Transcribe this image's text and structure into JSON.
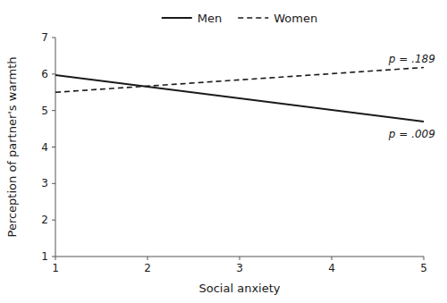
{
  "chart_data": {
    "type": "line",
    "x_label": "Social anxiety",
    "y_label": "Perception of partner's warmth",
    "x": [
      1,
      5
    ],
    "series": [
      {
        "name": "Men",
        "color": "#1a1a1a",
        "line_style": "solid",
        "values": [
          5.97,
          4.7
        ]
      },
      {
        "name": "Women",
        "color": "#1a1a1a",
        "line_style": "dashed",
        "values": [
          5.5,
          6.18
        ]
      }
    ],
    "annotations": [
      {
        "text": "p = .189",
        "x": 4.62,
        "y": 6.32
      },
      {
        "text": "p = .009",
        "x": 4.62,
        "y": 4.25
      }
    ],
    "xlim": [
      1,
      5
    ],
    "ylim": [
      1,
      7
    ],
    "xticks": [
      1,
      2,
      3,
      4,
      5
    ],
    "yticks": [
      1,
      2,
      3,
      4,
      5,
      6,
      7
    ],
    "grid": false,
    "legend": "top"
  }
}
